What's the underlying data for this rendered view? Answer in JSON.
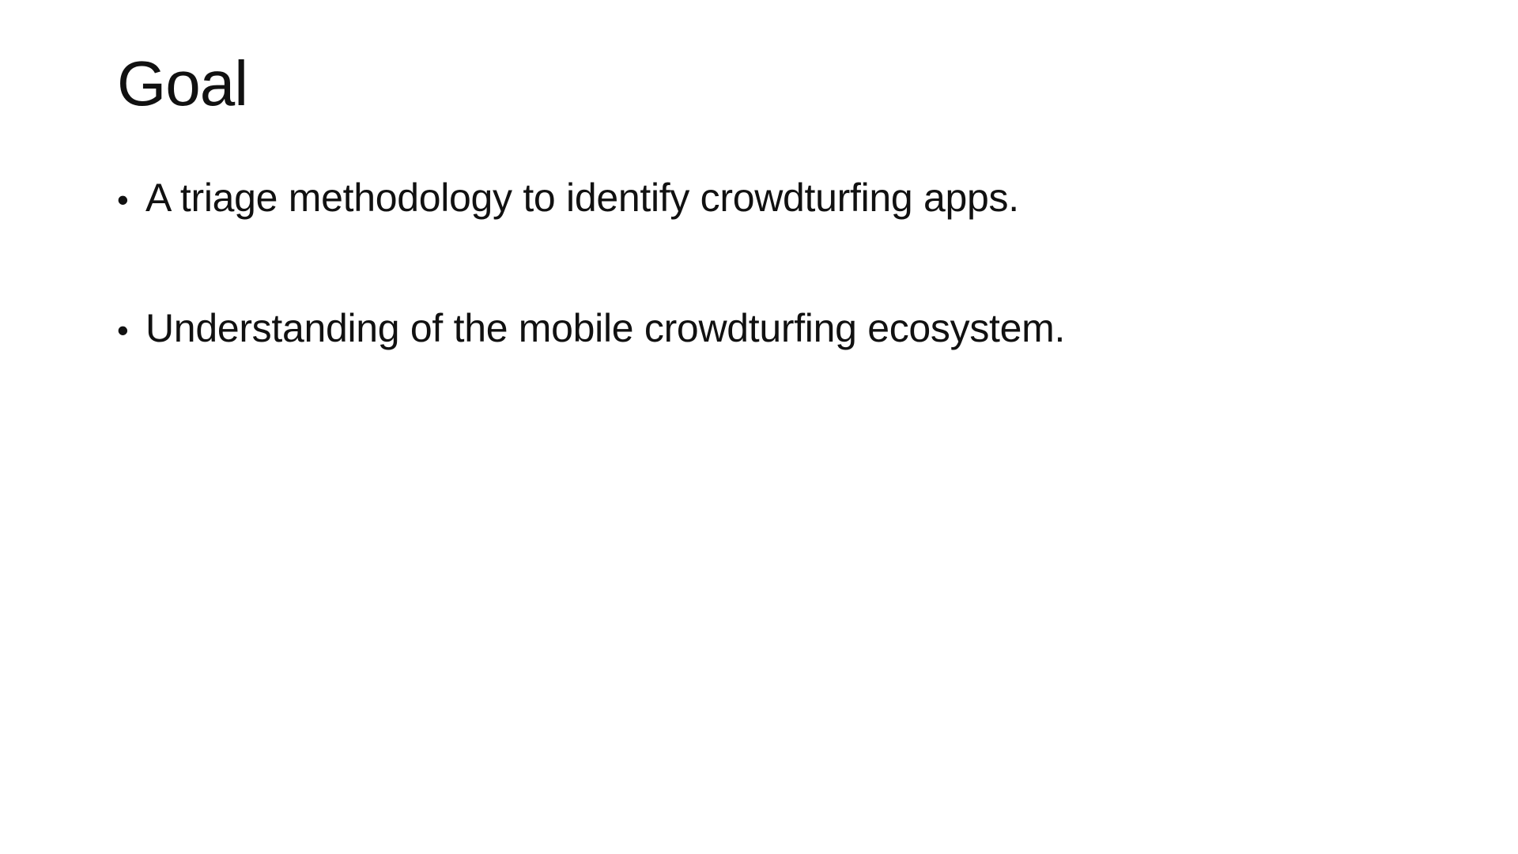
{
  "slide": {
    "title": "Goal",
    "bullet_symbol": "•",
    "bullets": [
      "A triage methodology to identify crowdturfing apps.",
      "Understanding of the mobile crowdturfing ecosystem."
    ]
  },
  "colors": {
    "background": "#ffffff",
    "text": "#111111"
  }
}
